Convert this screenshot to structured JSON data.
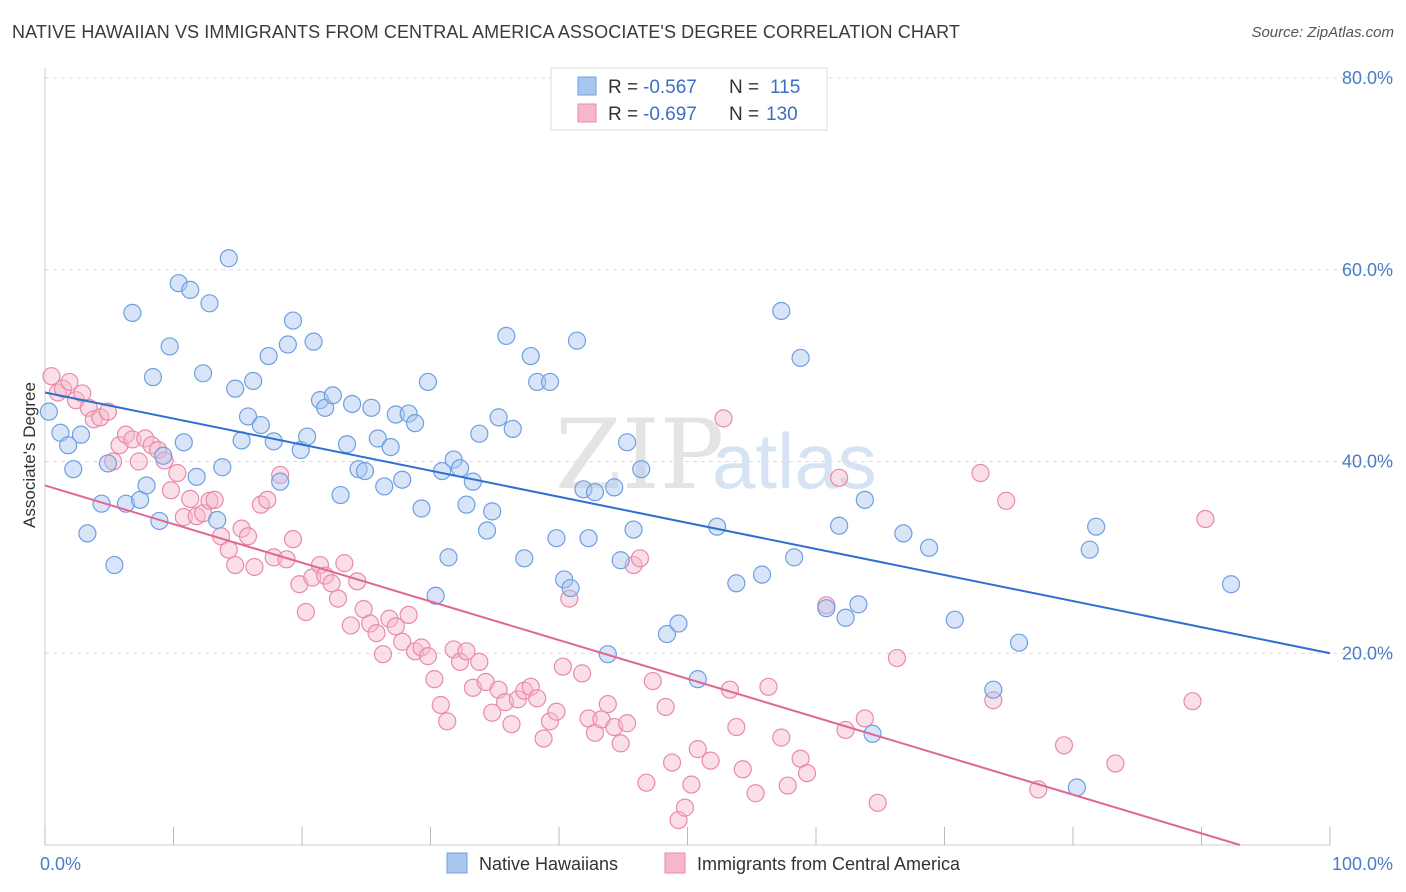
{
  "title": "NATIVE HAWAIIAN VS IMMIGRANTS FROM CENTRAL AMERICA ASSOCIATE'S DEGREE CORRELATION CHART",
  "source": "Source: ZipAtlas.com",
  "watermark": {
    "part1": "ZIP",
    "part2": "atlas"
  },
  "legend_top": [
    {
      "r_label": "R =",
      "r_value": "-0.567",
      "n_label": "N =",
      "n_value": "115"
    },
    {
      "r_label": "R =",
      "r_value": "-0.697",
      "n_label": "N =",
      "n_value": "130"
    }
  ],
  "chart_data": {
    "type": "scatter",
    "xlabel": "",
    "ylabel": "Associate's Degree",
    "xlim": [
      0,
      100
    ],
    "ylim": [
      0,
      80
    ],
    "x_tick_labels": {
      "min": "0.0%",
      "max": "100.0%"
    },
    "y_tick_labels": [
      "20.0%",
      "40.0%",
      "60.0%",
      "80.0%"
    ],
    "y_ticks": [
      20,
      40,
      60,
      80
    ],
    "grid": true,
    "legend_position": "bottom",
    "series": [
      {
        "name": "Native Hawaiians",
        "color": "#a9c6ef",
        "stroke": "#6f9fe0",
        "line_color": "#2e6fd0",
        "trend": {
          "x0": 0,
          "y0": 47.2,
          "x1": 100,
          "y1": 20.0
        },
        "points": [
          [
            0.3,
            45.2
          ],
          [
            1.2,
            43.0
          ],
          [
            1.8,
            41.7
          ],
          [
            2.2,
            39.2
          ],
          [
            2.8,
            42.8
          ],
          [
            3.3,
            32.5
          ],
          [
            4.4,
            35.6
          ],
          [
            4.9,
            39.8
          ],
          [
            5.4,
            29.2
          ],
          [
            6.3,
            35.6
          ],
          [
            6.8,
            55.5
          ],
          [
            7.4,
            36.0
          ],
          [
            7.9,
            37.5
          ],
          [
            8.4,
            48.8
          ],
          [
            8.9,
            33.8
          ],
          [
            9.2,
            40.6
          ],
          [
            9.7,
            52.0
          ],
          [
            10.4,
            58.6
          ],
          [
            10.8,
            42.0
          ],
          [
            11.3,
            57.9
          ],
          [
            11.8,
            38.4
          ],
          [
            12.3,
            49.2
          ],
          [
            12.8,
            56.5
          ],
          [
            13.4,
            33.9
          ],
          [
            13.8,
            39.4
          ],
          [
            14.3,
            61.2
          ],
          [
            14.8,
            47.6
          ],
          [
            15.3,
            42.2
          ],
          [
            15.8,
            44.7
          ],
          [
            16.2,
            48.4
          ],
          [
            16.8,
            43.8
          ],
          [
            17.4,
            51.0
          ],
          [
            17.8,
            42.1
          ],
          [
            18.3,
            37.9
          ],
          [
            18.9,
            52.2
          ],
          [
            19.3,
            54.7
          ],
          [
            19.9,
            41.2
          ],
          [
            20.4,
            42.6
          ],
          [
            20.9,
            52.5
          ],
          [
            21.4,
            46.4
          ],
          [
            21.8,
            45.6
          ],
          [
            22.4,
            46.9
          ],
          [
            23.0,
            36.5
          ],
          [
            23.5,
            41.8
          ],
          [
            23.9,
            46.0
          ],
          [
            24.4,
            39.2
          ],
          [
            24.9,
            39.0
          ],
          [
            25.4,
            45.6
          ],
          [
            25.9,
            42.4
          ],
          [
            26.4,
            37.4
          ],
          [
            26.9,
            41.5
          ],
          [
            27.3,
            44.9
          ],
          [
            27.8,
            38.1
          ],
          [
            28.3,
            45.0
          ],
          [
            28.8,
            44.0
          ],
          [
            29.3,
            35.1
          ],
          [
            29.8,
            48.3
          ],
          [
            30.4,
            26.0
          ],
          [
            30.9,
            39.0
          ],
          [
            31.4,
            30.0
          ],
          [
            31.8,
            40.2
          ],
          [
            32.3,
            39.3
          ],
          [
            32.8,
            35.5
          ],
          [
            33.3,
            37.9
          ],
          [
            33.8,
            42.9
          ],
          [
            34.4,
            32.8
          ],
          [
            34.8,
            34.8
          ],
          [
            35.3,
            44.6
          ],
          [
            35.9,
            53.1
          ],
          [
            36.4,
            43.4
          ],
          [
            37.3,
            29.9
          ],
          [
            37.8,
            51.0
          ],
          [
            38.3,
            48.3
          ],
          [
            39.3,
            48.3
          ],
          [
            39.8,
            32.0
          ],
          [
            40.4,
            27.7
          ],
          [
            40.9,
            26.8
          ],
          [
            41.4,
            52.6
          ],
          [
            41.9,
            37.1
          ],
          [
            42.3,
            32.0
          ],
          [
            42.8,
            36.8
          ],
          [
            43.8,
            19.9
          ],
          [
            44.3,
            37.3
          ],
          [
            44.8,
            29.7
          ],
          [
            45.3,
            42.0
          ],
          [
            45.8,
            32.9
          ],
          [
            46.4,
            39.2
          ],
          [
            48.4,
            22.0
          ],
          [
            49.3,
            23.1
          ],
          [
            50.8,
            17.3
          ],
          [
            52.3,
            33.2
          ],
          [
            53.8,
            27.3
          ],
          [
            55.8,
            28.2
          ],
          [
            57.3,
            55.7
          ],
          [
            58.3,
            30.0
          ],
          [
            58.8,
            50.8
          ],
          [
            60.8,
            24.7
          ],
          [
            61.8,
            33.3
          ],
          [
            62.3,
            23.7
          ],
          [
            63.3,
            25.1
          ],
          [
            63.8,
            36.0
          ],
          [
            64.4,
            11.6
          ],
          [
            66.8,
            32.5
          ],
          [
            68.8,
            31.0
          ],
          [
            70.8,
            23.5
          ],
          [
            73.8,
            16.2
          ],
          [
            75.8,
            21.1
          ],
          [
            80.3,
            6.0
          ],
          [
            81.3,
            30.8
          ],
          [
            81.8,
            33.2
          ],
          [
            92.3,
            27.2
          ]
        ]
      },
      {
        "name": "Immigrants from Central America",
        "color": "#f6b7cb",
        "stroke": "#e98aaa",
        "line_color": "#e06794",
        "trend": {
          "x0": 0,
          "y0": 37.5,
          "x1": 93.0,
          "y1": 0.0
        },
        "points": [
          [
            0.5,
            48.9
          ],
          [
            1.0,
            47.2
          ],
          [
            1.4,
            47.6
          ],
          [
            1.9,
            48.3
          ],
          [
            2.4,
            46.4
          ],
          [
            2.9,
            47.1
          ],
          [
            3.4,
            45.6
          ],
          [
            3.8,
            44.4
          ],
          [
            4.3,
            44.6
          ],
          [
            4.9,
            45.2
          ],
          [
            5.3,
            40.0
          ],
          [
            5.8,
            41.7
          ],
          [
            6.3,
            42.8
          ],
          [
            6.8,
            42.3
          ],
          [
            7.3,
            40.0
          ],
          [
            7.8,
            42.4
          ],
          [
            8.3,
            41.7
          ],
          [
            8.8,
            41.2
          ],
          [
            9.3,
            40.1
          ],
          [
            9.8,
            37.0
          ],
          [
            10.3,
            38.8
          ],
          [
            10.8,
            34.2
          ],
          [
            11.3,
            36.1
          ],
          [
            11.8,
            34.3
          ],
          [
            12.3,
            34.6
          ],
          [
            12.8,
            35.9
          ],
          [
            13.2,
            36.0
          ],
          [
            13.7,
            32.2
          ],
          [
            14.3,
            30.8
          ],
          [
            14.8,
            29.2
          ],
          [
            15.3,
            33.0
          ],
          [
            15.8,
            32.2
          ],
          [
            16.3,
            29.0
          ],
          [
            16.8,
            35.5
          ],
          [
            17.3,
            36.0
          ],
          [
            17.8,
            30.0
          ],
          [
            18.3,
            38.6
          ],
          [
            18.8,
            29.8
          ],
          [
            19.3,
            31.9
          ],
          [
            19.8,
            27.2
          ],
          [
            20.3,
            24.3
          ],
          [
            20.8,
            27.9
          ],
          [
            21.4,
            29.2
          ],
          [
            21.8,
            28.1
          ],
          [
            22.3,
            27.3
          ],
          [
            22.8,
            25.7
          ],
          [
            23.3,
            29.4
          ],
          [
            23.8,
            22.9
          ],
          [
            24.3,
            27.5
          ],
          [
            24.8,
            24.6
          ],
          [
            25.3,
            23.1
          ],
          [
            25.8,
            22.1
          ],
          [
            26.3,
            19.9
          ],
          [
            26.8,
            23.6
          ],
          [
            27.3,
            22.8
          ],
          [
            27.8,
            21.2
          ],
          [
            28.3,
            24.0
          ],
          [
            28.8,
            20.2
          ],
          [
            29.3,
            20.6
          ],
          [
            29.8,
            19.7
          ],
          [
            30.3,
            17.3
          ],
          [
            30.8,
            14.6
          ],
          [
            31.3,
            12.9
          ],
          [
            31.8,
            20.4
          ],
          [
            32.3,
            19.1
          ],
          [
            32.8,
            20.2
          ],
          [
            33.3,
            16.4
          ],
          [
            33.8,
            19.1
          ],
          [
            34.3,
            17.0
          ],
          [
            34.8,
            13.8
          ],
          [
            35.3,
            16.2
          ],
          [
            35.8,
            14.9
          ],
          [
            36.3,
            12.6
          ],
          [
            36.8,
            15.2
          ],
          [
            37.3,
            16.1
          ],
          [
            37.8,
            16.5
          ],
          [
            38.3,
            15.3
          ],
          [
            38.8,
            11.1
          ],
          [
            39.3,
            12.9
          ],
          [
            39.8,
            13.9
          ],
          [
            40.3,
            18.6
          ],
          [
            40.8,
            25.7
          ],
          [
            41.8,
            17.9
          ],
          [
            42.3,
            13.2
          ],
          [
            42.8,
            11.7
          ],
          [
            43.3,
            13.1
          ],
          [
            43.8,
            14.7
          ],
          [
            44.3,
            12.3
          ],
          [
            44.8,
            10.6
          ],
          [
            45.3,
            12.7
          ],
          [
            45.8,
            29.2
          ],
          [
            46.3,
            29.9
          ],
          [
            46.8,
            6.5
          ],
          [
            47.3,
            17.1
          ],
          [
            48.3,
            14.4
          ],
          [
            48.8,
            8.6
          ],
          [
            49.3,
            2.6
          ],
          [
            49.8,
            3.9
          ],
          [
            50.3,
            6.3
          ],
          [
            50.8,
            10.0
          ],
          [
            51.8,
            8.8
          ],
          [
            52.8,
            44.5
          ],
          [
            53.3,
            16.2
          ],
          [
            53.8,
            12.3
          ],
          [
            54.3,
            7.9
          ],
          [
            55.3,
            5.4
          ],
          [
            56.3,
            16.5
          ],
          [
            57.3,
            11.2
          ],
          [
            57.8,
            6.2
          ],
          [
            58.8,
            9.0
          ],
          [
            59.3,
            7.5
          ],
          [
            60.8,
            25.0
          ],
          [
            61.8,
            38.3
          ],
          [
            62.3,
            12.0
          ],
          [
            63.8,
            13.2
          ],
          [
            64.8,
            4.4
          ],
          [
            66.3,
            19.5
          ],
          [
            72.8,
            38.8
          ],
          [
            73.8,
            15.1
          ],
          [
            74.8,
            35.9
          ],
          [
            77.3,
            5.8
          ],
          [
            79.3,
            10.4
          ],
          [
            83.3,
            8.5
          ],
          [
            89.3,
            15.0
          ],
          [
            90.3,
            34.0
          ]
        ]
      }
    ]
  }
}
